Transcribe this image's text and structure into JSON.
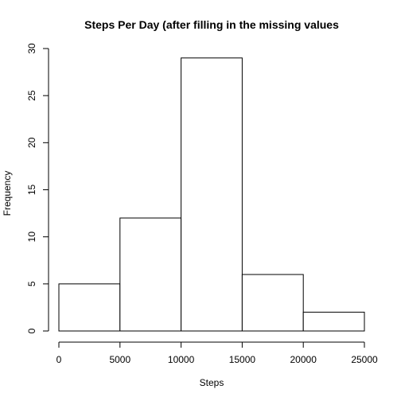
{
  "chart_data": {
    "type": "bar",
    "subtype": "histogram",
    "title": "Steps Per Day (after filling in the missing values",
    "xlabel": "Steps",
    "ylabel": "Frequency",
    "bins": [
      {
        "start": 0,
        "end": 5000,
        "count": 5
      },
      {
        "start": 5000,
        "end": 10000,
        "count": 12
      },
      {
        "start": 10000,
        "end": 15000,
        "count": 29
      },
      {
        "start": 15000,
        "end": 20000,
        "count": 6
      },
      {
        "start": 20000,
        "end": 25000,
        "count": 2
      }
    ],
    "xlim": [
      0,
      25000
    ],
    "ylim": [
      0,
      30
    ],
    "xticks": [
      0,
      5000,
      10000,
      15000,
      20000,
      25000
    ],
    "yticks": [
      0,
      5,
      10,
      15,
      20,
      25,
      30
    ],
    "grid": false,
    "bar_fill": "#ffffff",
    "bar_stroke": "#000000"
  }
}
